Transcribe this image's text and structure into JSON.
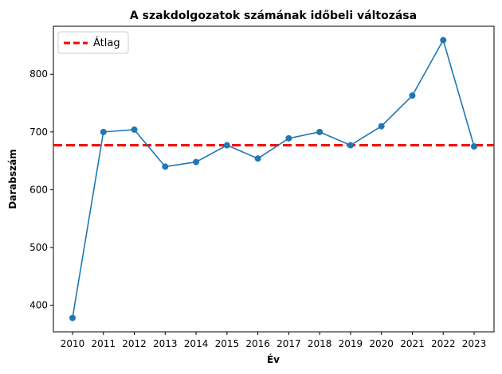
{
  "chart_data": {
    "type": "line",
    "title": "A szakdolgozatok számának időbeli változása",
    "xlabel": "Év",
    "ylabel": "Darabszám",
    "categories": [
      "2010",
      "2011",
      "2012",
      "2013",
      "2014",
      "2015",
      "2016",
      "2017",
      "2018",
      "2019",
      "2020",
      "2021",
      "2022",
      "2023"
    ],
    "series": [
      {
        "values": [
          378,
          700,
          704,
          640,
          648,
          677,
          654,
          689,
          700,
          677,
          710,
          763,
          859,
          675
        ],
        "color": "#1f77b4",
        "marker": "circle"
      }
    ],
    "reference_lines": [
      {
        "name": "Átlag",
        "value": 677,
        "color": "#ff0000",
        "style": "dashed"
      }
    ],
    "yticks": [
      400,
      500,
      600,
      700,
      800
    ],
    "ylim": [
      354,
      883
    ],
    "grid": false,
    "legend_position": "top-left"
  }
}
